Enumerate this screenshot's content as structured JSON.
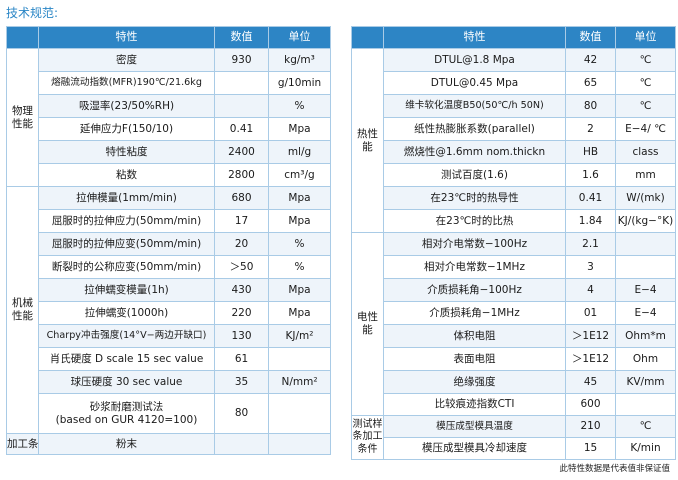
{
  "title": "技术规范:",
  "footer": "此特性数据是代表值非保证值",
  "left": {
    "headers": [
      "特性",
      "数值",
      "单位"
    ],
    "groups": {
      "phys": "物理性能",
      "mech": "机械性能",
      "proc": "加工条件"
    },
    "rows": [
      [
        "密度",
        "930",
        "kg/m³"
      ],
      [
        "熔融流动指数(MFR)190℃/21.6kg",
        "",
        "g/10min"
      ],
      [
        "吸湿率(23/50%RH)",
        "",
        "%"
      ],
      [
        "延伸应力F(150/10)",
        "0.41",
        "Mpa"
      ],
      [
        "特性粘度",
        "2400",
        "ml/g"
      ],
      [
        "粘数",
        "2800",
        "cm³/g"
      ],
      [
        "拉伸模量(1mm/min)",
        "680",
        "Mpa"
      ],
      [
        "屈服时的拉伸应力(50mm/min)",
        "17",
        "Mpa"
      ],
      [
        "屈服时的拉伸应变(50mm/min)",
        "20",
        "%"
      ],
      [
        "断裂时的公称应变(50mm/min)",
        "＞50",
        "%"
      ],
      [
        "拉伸蠕变模量(1h)",
        "430",
        "Mpa"
      ],
      [
        "拉伸蠕变(1000h)",
        "220",
        "Mpa"
      ],
      [
        "Charpy冲击强度(14°V−两边开缺口)",
        "130",
        "KJ/m²"
      ],
      [
        "肖氏硬度 D scale 15 sec value",
        "61",
        ""
      ],
      [
        "球压硬度 30 sec value",
        "35",
        "N/mm²"
      ],
      [
        "砂浆耐磨测试法\n(based on GUR 4120=100)",
        "80",
        ""
      ]
    ],
    "proc_value": "粉末"
  },
  "right": {
    "headers": [
      "特性",
      "数值",
      "单位"
    ],
    "groups": {
      "heat": "热性能",
      "elec": "电性能",
      "spec": "测试样条加工条件"
    },
    "rows": [
      [
        "DTUL@1.8 Mpa",
        "42",
        "℃"
      ],
      [
        "DTUL@0.45 Mpa",
        "65",
        "℃"
      ],
      [
        "维卡软化温度B50(50℃/h 50N)",
        "80",
        "℃"
      ],
      [
        "纸性热膨胀系数(parallel)",
        "2",
        "E−4/ ℃"
      ],
      [
        "燃烧性@1.6mm nom.thickn",
        "HB",
        "class"
      ],
      [
        "测试百度(1.6)",
        "1.6",
        "mm"
      ],
      [
        "在23℃时的热导性",
        "0.41",
        "W/(mk)"
      ],
      [
        "在23℃时的比热",
        "1.84",
        "KJ/(kg−°K)"
      ],
      [
        "相对介电常数−100Hz",
        "2.1",
        ""
      ],
      [
        "相对介电常数−1MHz",
        "3",
        ""
      ],
      [
        "介质损耗角−100Hz",
        "4",
        "E−4"
      ],
      [
        "介质损耗角−1MHz",
        "01",
        "E−4"
      ],
      [
        "体积电阻",
        "＞1E12",
        "Ohm*m"
      ],
      [
        "表面电阻",
        "＞1E12",
        "Ohm"
      ],
      [
        "绝缘强度",
        "45",
        "KV/mm"
      ],
      [
        "比较痕迹指数CTI",
        "600",
        ""
      ],
      [
        "模压成型模具温度",
        "210",
        "℃"
      ],
      [
        "模压成型模具冷却速度",
        "15",
        "K/min"
      ]
    ]
  }
}
